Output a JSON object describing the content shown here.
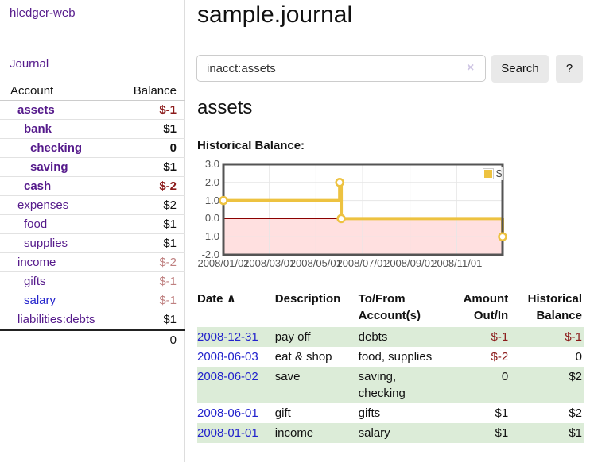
{
  "colors": {
    "purple_link": "#551a8b",
    "blue_link": "#2222cc",
    "negative": "#8b1a1a",
    "negative_soft": "#bf8080",
    "row_green": "#dcecd8",
    "series_gold": "#edc240",
    "zero_line": "#8b0000",
    "negative_region": "rgba(255,0,0,0.12)"
  },
  "sidebar": {
    "brand": "hledger-web",
    "journal_link": "Journal",
    "headers": {
      "account": "Account",
      "balance": "Balance"
    },
    "rows": [
      {
        "name": "assets",
        "depth": 0,
        "balance": "$-1",
        "bold": true,
        "tone": "neg",
        "link": "purple"
      },
      {
        "name": "bank",
        "depth": 1,
        "balance": "$1",
        "bold": true,
        "tone": "pos",
        "link": "purple"
      },
      {
        "name": "checking",
        "depth": 2,
        "balance": "0",
        "bold": true,
        "tone": "pos",
        "link": "purple"
      },
      {
        "name": "saving",
        "depth": 2,
        "balance": "$1",
        "bold": true,
        "tone": "pos",
        "link": "purple"
      },
      {
        "name": "cash",
        "depth": 1,
        "balance": "$-2",
        "bold": true,
        "tone": "neg",
        "link": "purple"
      },
      {
        "name": "expenses",
        "depth": 0,
        "balance": "$2",
        "bold": false,
        "tone": "pos",
        "link": "purple"
      },
      {
        "name": "food",
        "depth": 1,
        "balance": "$1",
        "bold": false,
        "tone": "pos",
        "link": "purple"
      },
      {
        "name": "supplies",
        "depth": 1,
        "balance": "$1",
        "bold": false,
        "tone": "pos",
        "link": "purple"
      },
      {
        "name": "income",
        "depth": 0,
        "balance": "$-2",
        "bold": false,
        "tone": "soft",
        "link": "purple"
      },
      {
        "name": "gifts",
        "depth": 1,
        "balance": "$-1",
        "bold": false,
        "tone": "soft",
        "link": "purple"
      },
      {
        "name": "salary",
        "depth": 1,
        "balance": "$-1",
        "bold": false,
        "tone": "soft",
        "link": "blue"
      },
      {
        "name": "liabilities:debts",
        "depth": 0,
        "balance": "$1",
        "bold": false,
        "tone": "pos",
        "link": "purple"
      }
    ],
    "total": "0"
  },
  "main": {
    "title": "sample.journal",
    "search": {
      "value": "inacct:assets",
      "clear_icon": "×",
      "search_button": "Search",
      "help_button": "?"
    },
    "account_heading": "assets",
    "chart_title": "Historical Balance:"
  },
  "chart_data": {
    "type": "line",
    "title": "Historical Balance:",
    "step": true,
    "series": [
      {
        "name": "$",
        "color": "#edc240",
        "points": [
          [
            "2008-01-01",
            1
          ],
          [
            "2008-06-01",
            2
          ],
          [
            "2008-06-03",
            0
          ],
          [
            "2008-12-31",
            -1
          ]
        ]
      }
    ],
    "xlim": [
      "2008-01-01",
      "2008-12-31"
    ],
    "ylim": [
      -2,
      3
    ],
    "y_ticks": [
      3.0,
      2.0,
      1.0,
      0.0,
      -1.0,
      -2.0
    ],
    "x_ticks": [
      "2008/01/01",
      "2008/03/01",
      "2008/05/01",
      "2008/07/01",
      "2008/09/01",
      "2008/11/01"
    ],
    "grid": true,
    "legend_position": "top-right",
    "legend_label": "$"
  },
  "register": {
    "headers": {
      "date": "Date",
      "sort_icon": "∧",
      "description": "Description",
      "accounts": "To/From Account(s)",
      "amount": "Amount Out/In",
      "balance": "Historical Balance"
    },
    "rows": [
      {
        "date": "2008-12-31",
        "description": "pay off",
        "accounts": "debts",
        "accounts_lines": [
          "debts"
        ],
        "amount": "$-1",
        "amount_tone": "neg",
        "balance": "$-1",
        "balance_tone": "neg",
        "shaded": true
      },
      {
        "date": "2008-06-03",
        "description": "eat & shop",
        "accounts": "food, supplies",
        "accounts_lines": [
          "food, supplies"
        ],
        "amount": "$-2",
        "amount_tone": "neg",
        "balance": "0",
        "balance_tone": "pos",
        "shaded": false
      },
      {
        "date": "2008-06-02",
        "description": "save",
        "accounts": "saving, checking",
        "accounts_lines": [
          "saving,",
          "checking"
        ],
        "amount": "0",
        "amount_tone": "pos",
        "balance": "$2",
        "balance_tone": "pos",
        "shaded": true
      },
      {
        "date": "2008-06-01",
        "description": "gift",
        "accounts": "gifts",
        "accounts_lines": [
          "gifts"
        ],
        "amount": "$1",
        "amount_tone": "pos",
        "balance": "$2",
        "balance_tone": "pos",
        "shaded": false
      },
      {
        "date": "2008-01-01",
        "description": "income",
        "accounts": "salary",
        "accounts_lines": [
          "salary"
        ],
        "amount": "$1",
        "amount_tone": "pos",
        "balance": "$1",
        "balance_tone": "pos",
        "shaded": true
      }
    ]
  }
}
